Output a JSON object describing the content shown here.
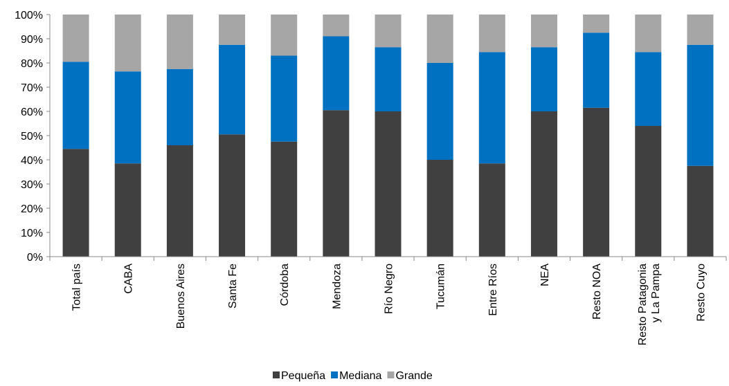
{
  "chart_data": {
    "type": "bar",
    "stacked": true,
    "percent": true,
    "title": "",
    "xlabel": "",
    "ylabel": "",
    "ylim": [
      0,
      100
    ],
    "yticks": [
      "0%",
      "10%",
      "20%",
      "30%",
      "40%",
      "50%",
      "60%",
      "70%",
      "80%",
      "90%",
      "100%"
    ],
    "grid": false,
    "legend_position": "bottom",
    "categories": [
      [
        "Total país"
      ],
      [
        "CABA"
      ],
      [
        "Buenos Aires"
      ],
      [
        "Santa Fe"
      ],
      [
        "Córdoba"
      ],
      [
        "Mendoza"
      ],
      [
        "Río Negro"
      ],
      [
        "Tucumán"
      ],
      [
        "Entre Ríos"
      ],
      [
        "NEA"
      ],
      [
        "Resto NOA"
      ],
      [
        "Resto Patagonia",
        "y La Pampa"
      ],
      [
        "Resto Cuyo"
      ]
    ],
    "series": [
      {
        "name": "Pequeña",
        "color": "#404040",
        "values": [
          44.5,
          38.5,
          46,
          50.5,
          47.5,
          60.5,
          60,
          40,
          38.5,
          60,
          61.5,
          54,
          37.5
        ]
      },
      {
        "name": "Mediana",
        "color": "#0070C0",
        "values": [
          36,
          38,
          31.5,
          37,
          35.5,
          30.5,
          26.5,
          40,
          46,
          26.5,
          31,
          30.5,
          50
        ]
      },
      {
        "name": "Grande",
        "color": "#A6A6A6",
        "values": [
          19.5,
          23.5,
          22.5,
          12.5,
          17,
          9,
          13.5,
          20,
          15.5,
          13.5,
          7.5,
          15.5,
          12.5
        ]
      }
    ]
  }
}
